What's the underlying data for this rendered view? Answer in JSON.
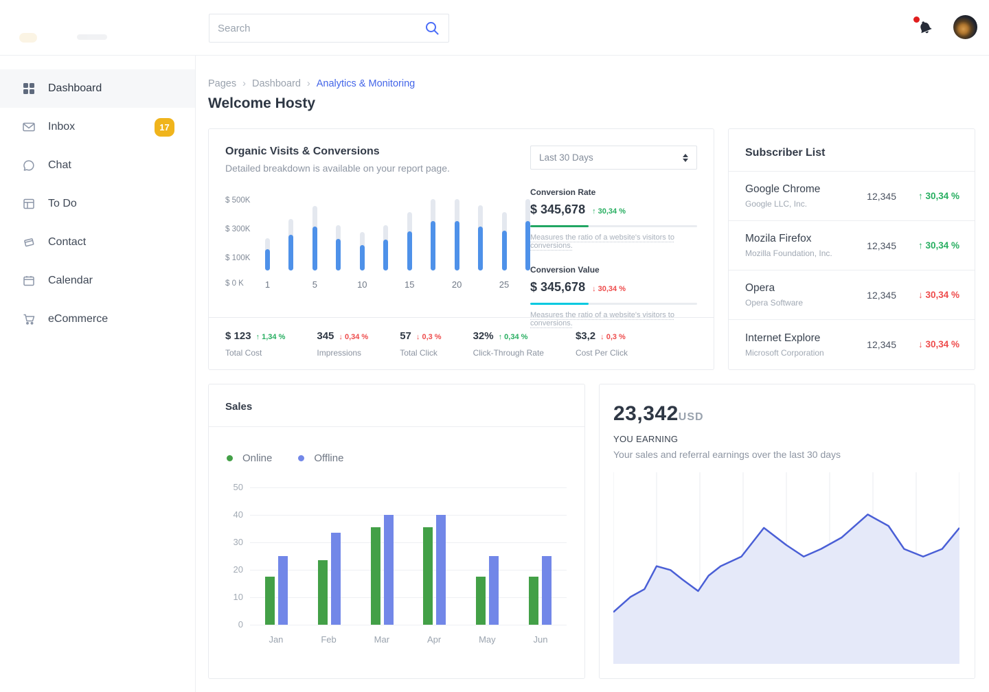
{
  "topbar": {
    "search_placeholder": "Search"
  },
  "sidebar": {
    "items": [
      {
        "label": "Dashboard",
        "active": true
      },
      {
        "label": "Inbox",
        "badge": "17"
      },
      {
        "label": "Chat"
      },
      {
        "label": "To Do"
      },
      {
        "label": "Contact"
      },
      {
        "label": "Calendar"
      },
      {
        "label": "eCommerce"
      }
    ]
  },
  "breadcrumb": {
    "items": [
      "Pages",
      "Dashboard",
      "Analytics & Monitoring"
    ]
  },
  "page_title": "Welcome Hosty",
  "organic": {
    "title": "Organic Visits & Conversions",
    "subtitle": "Detailed breakdown is available on your report page.",
    "range_select": "Last 30 Days",
    "conversion_rate": {
      "label": "Conversion Rate",
      "value": "$ 345,678",
      "delta": "30,34 %",
      "dir": "up",
      "desc": "Measures the ratio of a website's visitors to conversions.",
      "bar_color": "#21a663",
      "bar_pct": 35
    },
    "conversion_value": {
      "label": "Conversion Value",
      "value": "$ 345,678",
      "delta": "30,34 %",
      "dir": "down",
      "desc": "Measures the ratio of a website's visitors to conversions.",
      "bar_color": "#00c9e0",
      "bar_pct": 35
    },
    "footer_stats": [
      {
        "value": "$ 123",
        "delta": "1,34 %",
        "dir": "up",
        "label": "Total Cost"
      },
      {
        "value": "345",
        "delta": "0,34 %",
        "dir": "down",
        "label": "Impressions"
      },
      {
        "value": "57",
        "delta": "0,3 %",
        "dir": "down",
        "label": "Total Click"
      },
      {
        "value": "32%",
        "delta": "0,34 %",
        "dir": "up",
        "label": "Click-Through Rate"
      },
      {
        "value": "$3,2",
        "delta": "0,3 %",
        "dir": "down",
        "label": "Cost Per Click"
      }
    ]
  },
  "subscribers": {
    "title": "Subscriber List",
    "rows": [
      {
        "name": "Google Chrome",
        "company": "Google LLC, Inc.",
        "count": "12,345",
        "delta": "30,34 %",
        "dir": "up"
      },
      {
        "name": "Mozila Firefox",
        "company": "Mozilla Foundation, Inc.",
        "count": "12,345",
        "delta": "30,34 %",
        "dir": "up"
      },
      {
        "name": "Opera",
        "company": "Opera Software",
        "count": "12,345",
        "delta": "30,34 %",
        "dir": "down"
      },
      {
        "name": "Internet Explore",
        "company": "Microsoft Corporation",
        "count": "12,345",
        "delta": "30,34 %",
        "dir": "down"
      }
    ]
  },
  "sales": {
    "title": "Sales",
    "legend": [
      {
        "label": "Online",
        "color": "#43a047"
      },
      {
        "label": "Offline",
        "color": "#7287e8"
      }
    ]
  },
  "earning": {
    "amount": "23,342",
    "currency": "USD",
    "label": "YOU EARNING",
    "desc": "Your sales and referral earnings over the last 30 days"
  },
  "chart_data": [
    {
      "id": "organic_visits",
      "type": "bar",
      "title": "Organic Visits & Conversions",
      "xticks": [
        "1",
        "",
        "5",
        "",
        "10",
        "",
        "15",
        "",
        "20",
        "",
        "25",
        ""
      ],
      "series": [
        {
          "name": "target-total",
          "color": "#e4e8ef",
          "values": [
            225,
            360,
            450,
            315,
            270,
            315,
            410,
            500,
            500,
            455,
            410,
            500
          ]
        },
        {
          "name": "organic-visits",
          "color": "#4e91e9",
          "values": [
            150,
            250,
            310,
            220,
            180,
            215,
            275,
            345,
            345,
            310,
            280,
            345
          ]
        }
      ],
      "ylabels": [
        "$ 500K",
        "$ 300K",
        "$ 100K",
        "$ 0 K"
      ],
      "ylim": [
        0,
        500
      ],
      "grid": false
    },
    {
      "id": "sales",
      "type": "bar",
      "title": "Sales",
      "categories": [
        "Jan",
        "Feb",
        "Mar",
        "Apr",
        "May",
        "Jun"
      ],
      "series": [
        {
          "name": "Online",
          "color": "#43a047",
          "values": [
            17.5,
            23.5,
            35.5,
            35.5,
            17.5,
            17.5
          ]
        },
        {
          "name": "Offline",
          "color": "#7287e8",
          "values": [
            25,
            33.5,
            40,
            40,
            25,
            25
          ]
        }
      ],
      "yticks": [
        0,
        10,
        20,
        30,
        40,
        50
      ],
      "ylim": [
        0,
        50
      ],
      "grid": true,
      "legend_position": "top-left"
    },
    {
      "id": "earning",
      "type": "area",
      "title": "YOU EARNING",
      "line_color": "#4a5fd6",
      "fill_color": "#e5e9f9",
      "grid_color": "#e9ebef",
      "vertical_gridlines": 9,
      "x_range_pct": [
        0,
        100
      ],
      "y_range_pct": [
        0,
        100
      ],
      "points": [
        [
          0,
          27
        ],
        [
          5,
          35
        ],
        [
          9,
          39
        ],
        [
          12.5,
          51
        ],
        [
          16.5,
          49
        ],
        [
          20,
          44
        ],
        [
          24.5,
          38
        ],
        [
          27.5,
          46
        ],
        [
          31,
          51
        ],
        [
          37,
          56
        ],
        [
          43.5,
          71
        ],
        [
          50,
          62
        ],
        [
          55,
          56
        ],
        [
          60,
          60
        ],
        [
          66,
          66
        ],
        [
          73.5,
          78
        ],
        [
          79.5,
          72
        ],
        [
          84,
          60
        ],
        [
          89.5,
          56
        ],
        [
          95,
          60
        ],
        [
          100,
          71
        ]
      ]
    }
  ]
}
